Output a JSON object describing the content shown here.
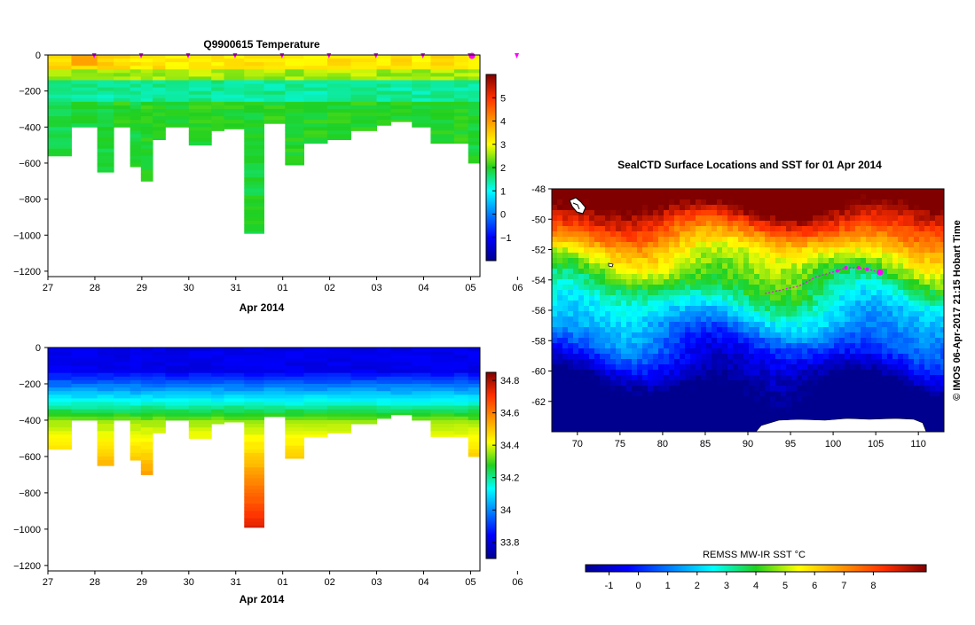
{
  "chart_data": [
    {
      "type": "heatmap",
      "title": "Q9900615  Temperature",
      "xlabel": "Apr 2014",
      "ylabel": "",
      "x_ticks": [
        "27",
        "28",
        "29",
        "30",
        "31",
        "01",
        "02",
        "03",
        "04",
        "05",
        "06"
      ],
      "x_range": [
        0,
        9.2
      ],
      "y_ticks": [
        0,
        -200,
        -400,
        -600,
        -800,
        -1000,
        -1200
      ],
      "ylim": [
        -1230,
        0
      ],
      "colorbar": {
        "range": [
          -2,
          6
        ],
        "ticks": [
          5,
          4,
          3,
          2,
          1,
          0,
          -1
        ]
      },
      "profile_markers": [
        1,
        2,
        3,
        4,
        5,
        6,
        7,
        8,
        9,
        10
      ],
      "profiles": [
        {
          "x0": 0.0,
          "x1": 0.5,
          "max_depth": 560,
          "t_surface": 3.3,
          "t_deep": 1.8
        },
        {
          "x0": 0.5,
          "x1": 1.05,
          "max_depth": 400,
          "t_surface": 3.4,
          "t_deep": 1.9
        },
        {
          "x0": 1.05,
          "x1": 1.4,
          "max_depth": 650,
          "t_surface": 3.5,
          "t_deep": 1.9
        },
        {
          "x0": 1.4,
          "x1": 1.75,
          "max_depth": 400,
          "t_surface": 3.3,
          "t_deep": 2.0
        },
        {
          "x0": 1.75,
          "x1": 1.98,
          "max_depth": 620,
          "t_surface": 3.2,
          "t_deep": 1.9
        },
        {
          "x0": 1.98,
          "x1": 2.23,
          "max_depth": 700,
          "t_surface": 3.2,
          "t_deep": 2.0
        },
        {
          "x0": 2.23,
          "x1": 2.5,
          "max_depth": 470,
          "t_surface": 3.3,
          "t_deep": 2.0
        },
        {
          "x0": 2.5,
          "x1": 3.0,
          "max_depth": 400,
          "t_surface": 3.2,
          "t_deep": 1.9
        },
        {
          "x0": 3.0,
          "x1": 3.48,
          "max_depth": 500,
          "t_surface": 3.3,
          "t_deep": 2.0
        },
        {
          "x0": 3.48,
          "x1": 3.75,
          "max_depth": 420,
          "t_surface": 3.2,
          "t_deep": 2.0
        },
        {
          "x0": 3.75,
          "x1": 4.18,
          "max_depth": 410,
          "t_surface": 3.2,
          "t_deep": 2.0
        },
        {
          "x0": 4.18,
          "x1": 4.6,
          "max_depth": 990,
          "t_surface": 3.3,
          "t_deep": 1.9
        },
        {
          "x0": 4.6,
          "x1": 5.05,
          "max_depth": 380,
          "t_surface": 3.2,
          "t_deep": 2.0
        },
        {
          "x0": 5.05,
          "x1": 5.45,
          "max_depth": 610,
          "t_surface": 3.1,
          "t_deep": 2.0
        },
        {
          "x0": 5.45,
          "x1": 5.95,
          "max_depth": 490,
          "t_surface": 3.2,
          "t_deep": 2.0
        },
        {
          "x0": 5.95,
          "x1": 6.45,
          "max_depth": 470,
          "t_surface": 3.3,
          "t_deep": 2.0
        },
        {
          "x0": 6.45,
          "x1": 7.0,
          "max_depth": 420,
          "t_surface": 3.2,
          "t_deep": 2.0
        },
        {
          "x0": 7.0,
          "x1": 7.3,
          "max_depth": 390,
          "t_surface": 3.2,
          "t_deep": 2.0
        },
        {
          "x0": 7.3,
          "x1": 7.75,
          "max_depth": 370,
          "t_surface": 3.3,
          "t_deep": 2.0
        },
        {
          "x0": 7.75,
          "x1": 8.15,
          "max_depth": 400,
          "t_surface": 3.2,
          "t_deep": 2.0
        },
        {
          "x0": 8.15,
          "x1": 8.65,
          "max_depth": 490,
          "t_surface": 3.3,
          "t_deep": 2.0
        },
        {
          "x0": 8.65,
          "x1": 8.95,
          "max_depth": 490,
          "t_surface": 3.1,
          "t_deep": 2.0
        },
        {
          "x0": 8.95,
          "x1": 9.2,
          "max_depth": 600,
          "t_surface": 3.2,
          "t_deep": 1.9
        }
      ]
    },
    {
      "type": "heatmap",
      "title": "",
      "xlabel": "Apr 2014",
      "ylabel": "",
      "x_ticks": [
        "27",
        "28",
        "29",
        "30",
        "31",
        "01",
        "02",
        "03",
        "04",
        "05",
        "06"
      ],
      "x_range": [
        0,
        9.2
      ],
      "y_ticks": [
        0,
        -200,
        -400,
        -600,
        -800,
        -1000,
        -1200
      ],
      "ylim": [
        -1230,
        0
      ],
      "colorbar": {
        "range": [
          33.7,
          34.85
        ],
        "ticks": [
          "34.8",
          "34.6",
          "34.4",
          "34.2",
          "34",
          "33.8"
        ]
      }
    },
    {
      "type": "heatmap",
      "title": "SealCTD Surface Locations and SST for 01 Apr 2014",
      "xlabel": "",
      "ylabel": "",
      "x_ticks": [
        "70",
        "75",
        "80",
        "85",
        "90",
        "95",
        "100",
        "105",
        "110"
      ],
      "xlim": [
        67,
        113
      ],
      "y_ticks": [
        "-48",
        "-50",
        "-52",
        "-54",
        "-56",
        "-58",
        "-60",
        "-62"
      ],
      "ylim": [
        -64,
        -48
      ],
      "side_label": "© IMOS 06-Apr-2017 21:15 Hobart Time",
      "track": [
        [
          92,
          -54.9
        ],
        [
          96,
          -54.4
        ],
        [
          98,
          -53.8
        ],
        [
          100.5,
          -53.4
        ],
        [
          101.5,
          -53.2
        ],
        [
          103,
          -53.2
        ],
        [
          104,
          -53.3
        ],
        [
          105.5,
          -53.5
        ]
      ],
      "colorbar": {
        "label": "REMSS MW-IR SST °C",
        "range": [
          -1.8,
          9.8
        ],
        "ticks": [
          "-1",
          "0",
          "1",
          "2",
          "3",
          "4",
          "5",
          "6",
          "7",
          "8"
        ]
      }
    }
  ]
}
